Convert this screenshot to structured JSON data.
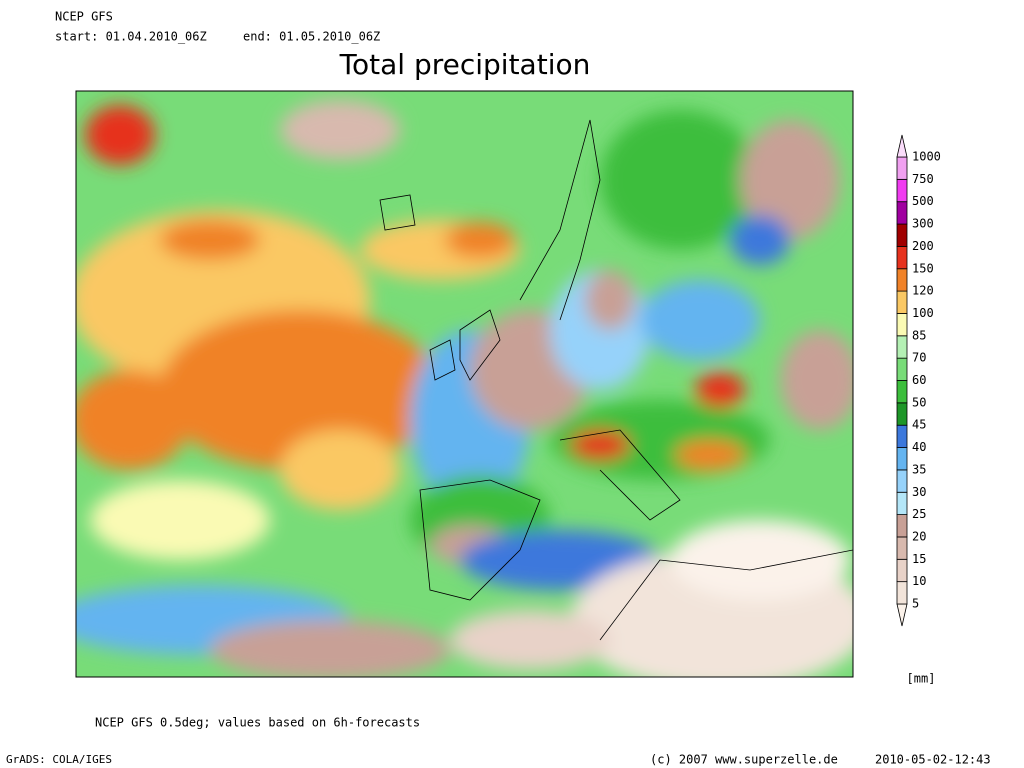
{
  "header": {
    "model": "NCEP GFS",
    "start": "start: 01.04.2010_06Z",
    "end": "end: 01.05.2010_06Z",
    "title": "Total precipitation"
  },
  "legend": {
    "levels": [
      5,
      10,
      15,
      20,
      25,
      30,
      35,
      40,
      45,
      50,
      60,
      70,
      85,
      100,
      120,
      150,
      200,
      300,
      500,
      750,
      1000
    ],
    "colors": [
      "#fbf2ea",
      "#f2e4da",
      "#e8d2c8",
      "#d8b9ae",
      "#c8a096",
      "#b4e6f8",
      "#96d2fa",
      "#64b4f0",
      "#3c78dc",
      "#1e9628",
      "#3cbe3c",
      "#78dc78",
      "#b4f0b4",
      "#fafab4",
      "#fac864",
      "#f08228",
      "#e6321e",
      "#a00000",
      "#a000a0",
      "#f03cf0",
      "#f0a0f0",
      "#fadcfa"
    ],
    "unit": "[mm]"
  },
  "footer": {
    "note": "NCEP GFS 0.5deg; values based on 6h-forecasts",
    "software": "GrADS: COLA/IGES",
    "copyright": "(c) 2007 www.superzelle.de",
    "timestamp": "2010-05-02-12:43"
  }
}
